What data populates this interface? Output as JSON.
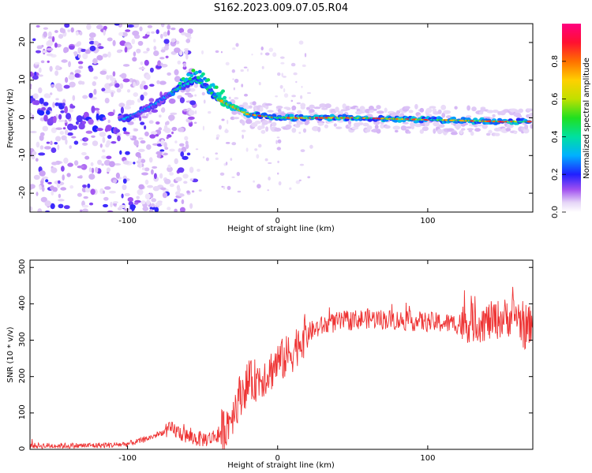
{
  "title": "S162.2023.009.07.05.R04",
  "chart_data": [
    {
      "type": "heatmap",
      "xlabel": "Height of straight line (km)",
      "ylabel": "Frequency (Hz)",
      "xlim": [
        -165,
        170
      ],
      "ylim": [
        -25,
        25
      ],
      "x_ticks": [
        -100,
        0,
        100
      ],
      "y_ticks": [
        -20,
        -10,
        0,
        10,
        20
      ],
      "colorbar": {
        "label": "Normalized spectral amplitude",
        "range": [
          0,
          1
        ],
        "ticks": [
          "0.0",
          "0.2",
          "0.4",
          "0.6",
          "0.8"
        ]
      },
      "ridge": {
        "x": [
          -165,
          -150,
          -130,
          -110,
          -100,
          -90,
          -80,
          -70,
          -60,
          -55,
          -50,
          -45,
          -40,
          -35,
          -30,
          -25,
          -20,
          -10,
          0,
          10,
          50,
          100,
          150,
          170
        ],
        "freq_hz": [
          2,
          1,
          0,
          -1,
          0,
          2,
          4,
          7,
          9,
          10,
          9,
          7,
          5,
          4,
          3,
          2,
          1,
          0.5,
          0,
          0,
          0,
          -0.5,
          -1,
          -1
        ]
      }
    },
    {
      "type": "line",
      "xlabel": "Height of straight line (km)",
      "ylabel": "SNR (10 * v/v)",
      "xlim": [
        -165,
        170
      ],
      "ylim": [
        0,
        520
      ],
      "x_ticks": [
        -100,
        0,
        100
      ],
      "y_ticks": [
        0,
        100,
        200,
        300,
        400,
        500
      ],
      "color": "#ee3333",
      "series": [
        {
          "x": [
            -165,
            -150,
            -130,
            -110,
            -100,
            -90,
            -80,
            -75,
            -70,
            -65,
            -60,
            -55,
            -50,
            -45,
            -40,
            -35,
            -30,
            -25,
            -20,
            -15,
            -10,
            -5,
            0,
            5,
            10,
            15,
            20,
            25,
            30,
            40,
            50,
            60,
            80,
            100,
            120,
            140,
            150,
            160,
            165,
            170
          ],
          "y": [
            10,
            10,
            10,
            12,
            15,
            25,
            40,
            50,
            55,
            45,
            35,
            30,
            28,
            30,
            40,
            60,
            100,
            150,
            180,
            190,
            200,
            215,
            240,
            250,
            270,
            300,
            320,
            330,
            340,
            350,
            355,
            360,
            355,
            350,
            345,
            350,
            360,
            370,
            320,
            360
          ]
        }
      ]
    }
  ]
}
